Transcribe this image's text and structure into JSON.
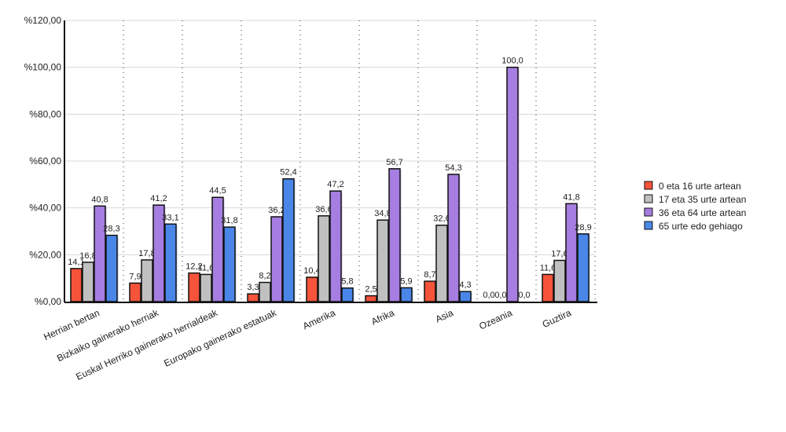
{
  "chart_data": {
    "type": "bar",
    "title": "",
    "xlabel": "",
    "ylabel": "",
    "ylim": [
      0,
      120
    ],
    "yticks": [
      "%0,00",
      "%20,00",
      "%40,00",
      "%60,00",
      "%80,00",
      "%100,00",
      "%120,00"
    ],
    "ytick_values": [
      0,
      20,
      40,
      60,
      80,
      100,
      120
    ],
    "grid": true,
    "legend_position": "right",
    "categories": [
      "Herrian bertan",
      "Bizkaiko gainerako herriak",
      "Euskal Herriko gainerako herrialdeak",
      "Europako gainerako estatuak",
      "Amerika",
      "Afrika",
      "Asia",
      "Ozeania",
      "Guztira"
    ],
    "series": [
      {
        "name": "0 eta 16 urte artean",
        "color": "#f5533a",
        "values": [
          14.1,
          7.9,
          12.2,
          3.3,
          10.4,
          2.5,
          8.7,
          0.0,
          11.6
        ],
        "labels": [
          "14,1",
          "7,9",
          "12,2",
          "3,3",
          "10,4",
          "2,5",
          "8,7",
          "0,0",
          "11,6"
        ]
      },
      {
        "name": "17 eta 35 urte artean",
        "color": "#c0c0c0",
        "values": [
          16.8,
          17.8,
          11.6,
          8.2,
          36.6,
          34.8,
          32.6,
          0.0,
          17.6
        ],
        "labels": [
          "16,8",
          "17,8",
          "11,6",
          "8,2",
          "36,6",
          "34,8",
          "32,6",
          "0,0",
          "17,6"
        ]
      },
      {
        "name": "36 eta 64 urte artean",
        "color": "#a67de0",
        "values": [
          40.8,
          41.2,
          44.5,
          36.2,
          47.2,
          56.7,
          54.3,
          100.0,
          41.8
        ],
        "labels": [
          "40,8",
          "41,2",
          "44,5",
          "36,2",
          "47,2",
          "56,7",
          "54,3",
          "100,0",
          "41,8"
        ]
      },
      {
        "name": "65 urte edo gehiago",
        "color": "#4a86e8",
        "values": [
          28.3,
          33.1,
          31.8,
          52.4,
          5.8,
          5.9,
          4.3,
          0.0,
          28.9
        ],
        "labels": [
          "28,3",
          "33,1",
          "31,8",
          "52,4",
          "5,8",
          "5,9",
          "4,3",
          "0,0",
          "28,9"
        ]
      }
    ]
  }
}
